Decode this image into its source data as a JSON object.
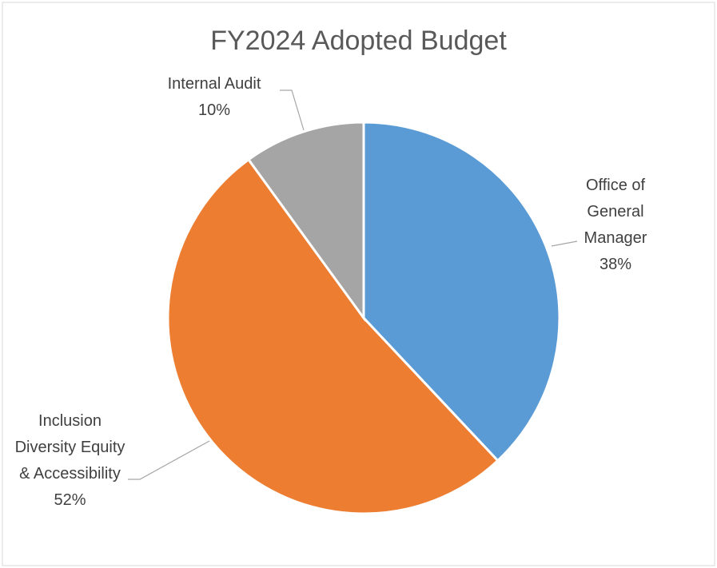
{
  "chart_data": {
    "type": "pie",
    "title": "FY2024 Adopted Budget",
    "categories": [
      "Office of General Manager",
      "Inclusion Diversity Equity & Accessibility",
      "Internal Audit"
    ],
    "values": [
      38,
      52,
      10
    ],
    "value_labels": [
      "38%",
      "52%",
      "10%"
    ],
    "colors": [
      "#5b9bd5",
      "#ed7d31",
      "#a5a5a5"
    ]
  }
}
